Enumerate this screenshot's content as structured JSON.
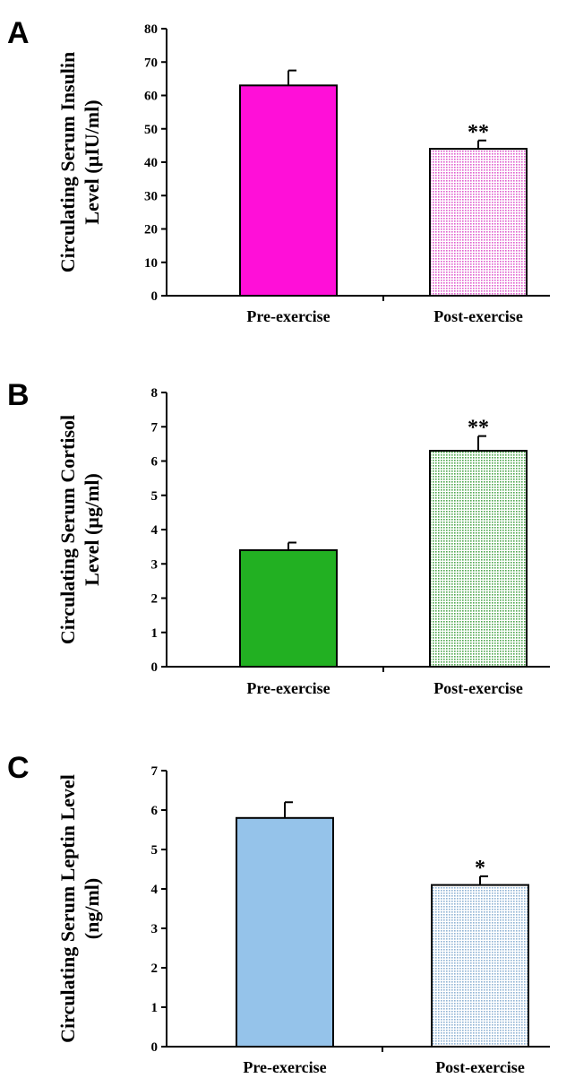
{
  "chart_data": [
    {
      "type": "bar",
      "panel": "A",
      "ylabel_lines": [
        "Circulating Serum Insulin",
        "Level (µIU/ml)"
      ],
      "categories": [
        "Pre-exercise",
        "Post-exercise"
      ],
      "values": [
        63,
        44
      ],
      "errors": [
        4.5,
        2.5
      ],
      "significance": [
        "",
        "**"
      ],
      "bar_colors": [
        "#ff0fd8",
        "#e05fce"
      ],
      "bar_patterns": [
        "solid",
        "dotted"
      ],
      "ylim": [
        0,
        80
      ],
      "yticks": [
        0,
        10,
        20,
        30,
        40,
        50,
        60,
        70,
        80
      ],
      "grid": false
    },
    {
      "type": "bar",
      "panel": "B",
      "ylabel_lines": [
        "Circulating Serum Cortisol",
        "Level (µg/ml)"
      ],
      "categories": [
        "Pre-exercise",
        "Post-exercise"
      ],
      "values": [
        3.4,
        6.3
      ],
      "errors": [
        0.22,
        0.43
      ],
      "significance": [
        "",
        "**"
      ],
      "bar_colors": [
        "#22b022",
        "#4fa84f"
      ],
      "bar_patterns": [
        "solid",
        "dotted"
      ],
      "ylim": [
        0,
        8
      ],
      "yticks": [
        0,
        1,
        2,
        3,
        4,
        5,
        6,
        7,
        8
      ],
      "grid": false
    },
    {
      "type": "bar",
      "panel": "C",
      "ylabel_lines": [
        "Circulating Serum Leptin Level",
        "(ng/ml)"
      ],
      "categories": [
        "Pre-exercise",
        "Post-exercise"
      ],
      "values": [
        5.8,
        4.1
      ],
      "errors": [
        0.4,
        0.22
      ],
      "significance": [
        "",
        "*"
      ],
      "bar_colors": [
        "#95c3ea",
        "#8fb3d4"
      ],
      "bar_patterns": [
        "solid",
        "dotted"
      ],
      "ylim": [
        0,
        7
      ],
      "yticks": [
        0,
        1,
        2,
        3,
        4,
        5,
        6,
        7
      ],
      "grid": false
    }
  ]
}
